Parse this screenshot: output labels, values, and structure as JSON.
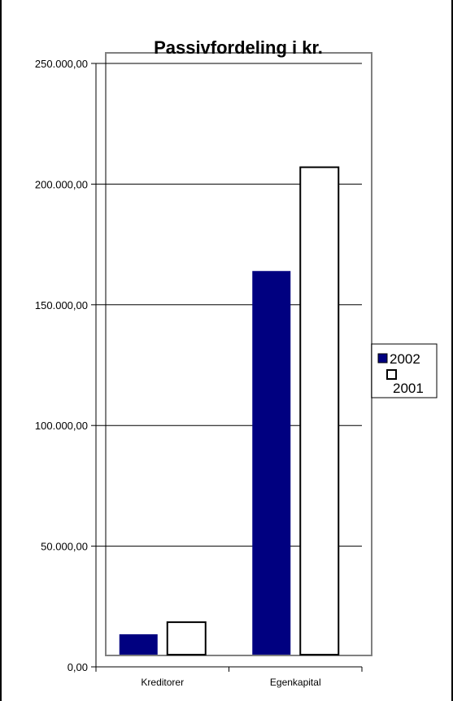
{
  "chart_data": {
    "type": "bar",
    "title": "Passivfordeling i kr.",
    "categories": [
      "Kreditorer",
      "Egenkapital"
    ],
    "series": [
      {
        "name": "2002",
        "values": [
          13500,
          164000
        ],
        "color": "#000080"
      },
      {
        "name": "2001",
        "values": [
          18500,
          207000
        ],
        "color": "#ffffff"
      }
    ],
    "y_ticks": [
      "0,00",
      "50.000,00",
      "100.000,00",
      "150.000,00",
      "200.000,00",
      "250.000,00"
    ],
    "y_tick_values": [
      0,
      50000,
      100000,
      150000,
      200000,
      250000
    ],
    "ylim": [
      0,
      250000
    ],
    "grid": true,
    "legend_position": "right",
    "legend_entries": [
      "2002",
      "2001"
    ]
  }
}
